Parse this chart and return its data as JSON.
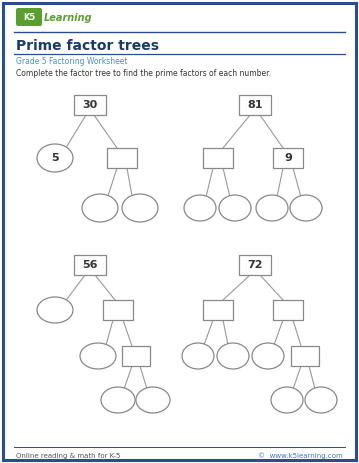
{
  "title": "Prime factor trees",
  "subtitle": "Grade 5 Factoring Worksheet",
  "instruction": "Complete the factor tree to find the prime factors of each number.",
  "footer_left": "Online reading & math for K-5",
  "footer_right": "©  www.k5learning.com",
  "bg_color": "#ffffff",
  "border_color": "#2a4d8f",
  "title_color": "#1a3a6b",
  "subtitle_color": "#4a90c8",
  "instruction_color": "#333333",
  "footer_color": "#555555",
  "footer_link_color": "#3a7abf",
  "box_edge_color": "#888888",
  "line_color": "#999999",
  "k5_green": "#5a9e2f",
  "k5_blue": "#4a7fb0"
}
